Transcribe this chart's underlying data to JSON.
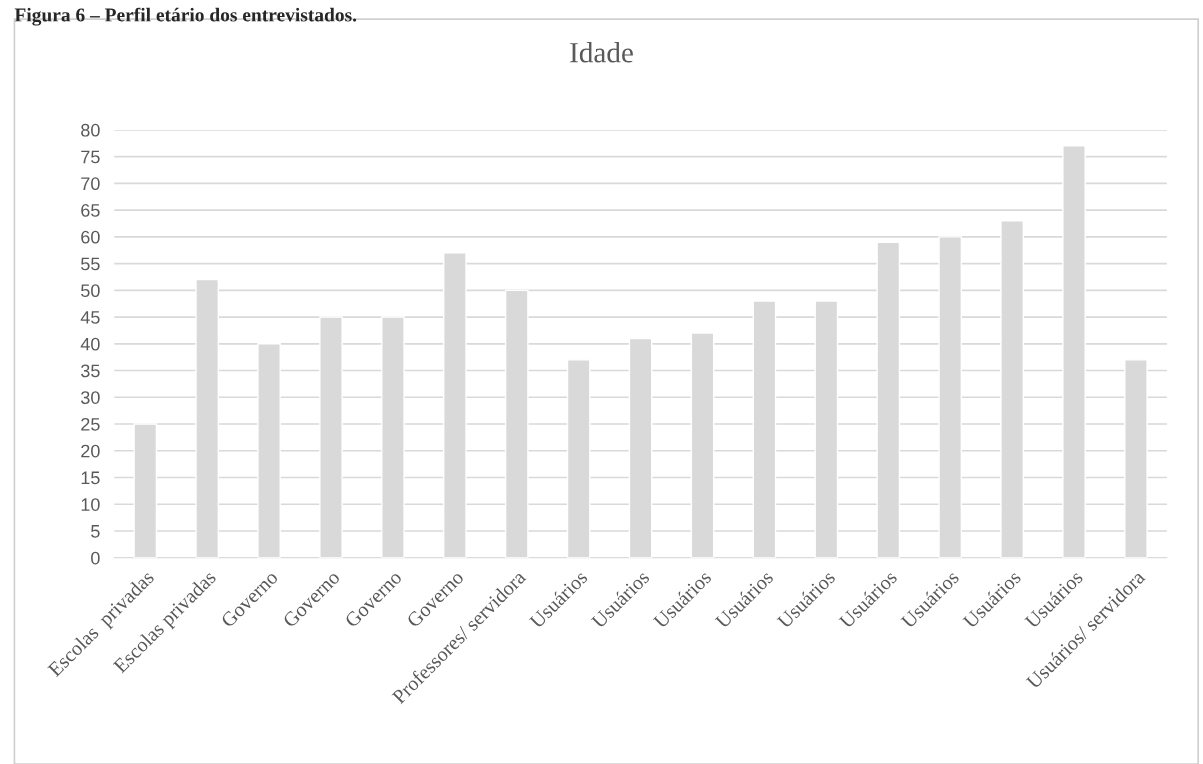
{
  "chart_data": {
    "type": "bar",
    "title": "Idade",
    "annotations": [
      "Figura 6 – Perfil etário dos entrevistados."
    ],
    "categories": [
      "Escolas  privadas",
      "Escolas privadas",
      "Governo",
      "Governo",
      "Governo",
      "Governo",
      "Professores/ servidora",
      "Usuários",
      "Usuários",
      "Usuários",
      "Usuários",
      "Usuários",
      "Usuários",
      "Usuários",
      "Usuários",
      "Usuários",
      "Usuários/ servidora"
    ],
    "values": [
      25,
      52,
      40,
      45,
      45,
      57,
      50,
      37,
      41,
      42,
      48,
      48,
      59,
      60,
      63,
      77,
      37
    ],
    "color": "#d9d9d9",
    "ylim": [
      0,
      80
    ],
    "yticks": [
      0,
      5,
      10,
      15,
      20,
      25,
      30,
      35,
      40,
      45,
      50,
      55,
      60,
      65,
      70,
      75,
      80
    ],
    "grid": "y"
  }
}
